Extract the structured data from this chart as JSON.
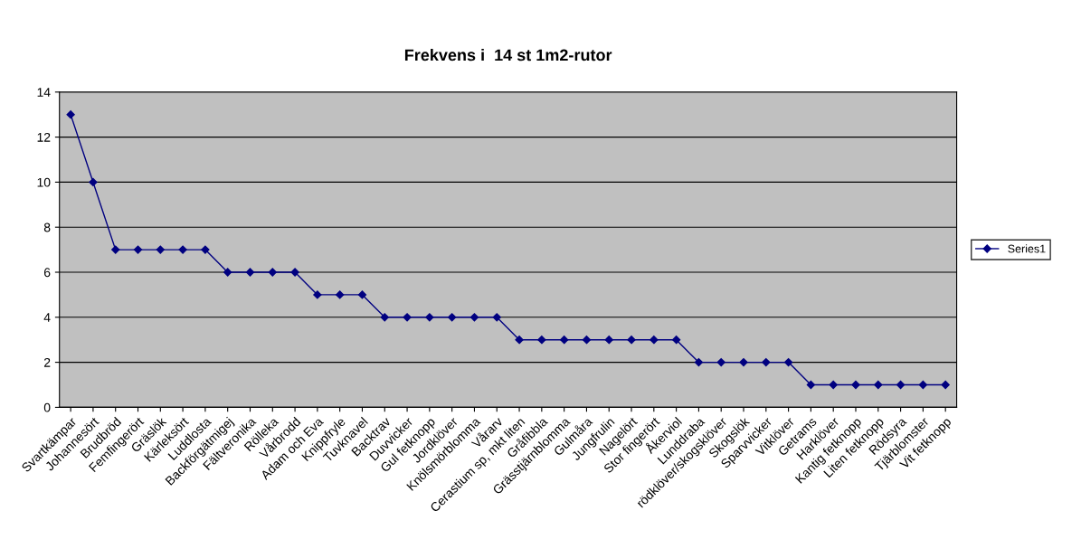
{
  "chart_data": {
    "type": "line",
    "title": "Frekvens i  14 st 1m2-rutor",
    "categories": [
      "Svartkämpar",
      "Johannesört",
      "Brudbröd",
      "Femfingerört",
      "Gräslök",
      "Kärleksört",
      "Luddlosta",
      "Backförgätmigej",
      "Fältveronika",
      "Rölleka",
      "Vårbrodd",
      "Adam och Eva",
      "Knippfryle",
      "Tuvknavel",
      "Backtrav",
      "Duvvicker",
      "Gul fetknopp",
      "Jordklöver",
      "Knölsmörblomma",
      "Vårarv",
      "Cerastium sp, mkt liten",
      "Gråfibbla",
      "Grässtjärnblomma",
      "Gulmåra",
      "Jungfrulin",
      "Nagelört",
      "Stor fingerört",
      "Åkerviol",
      "Lunddraba",
      "rödklöver/skogsklöver",
      "Skogslök",
      "Sparvvicker",
      "Vitklöver",
      "Getrams",
      "Harklöver",
      "Kantig fetknopp",
      "Liten fetknopp",
      "Rödsyra",
      "Tjärblomster",
      "Vit fetknopp"
    ],
    "series": [
      {
        "name": "Series1",
        "color": "#000080",
        "values": [
          13,
          10,
          7,
          7,
          7,
          7,
          7,
          6,
          6,
          6,
          6,
          5,
          5,
          5,
          4,
          4,
          4,
          4,
          4,
          4,
          3,
          3,
          3,
          3,
          3,
          3,
          3,
          3,
          2,
          2,
          2,
          2,
          2,
          1,
          1,
          1,
          1,
          1,
          1,
          1
        ]
      }
    ],
    "ylim": [
      0,
      14
    ],
    "yticks": [
      0,
      2,
      4,
      6,
      8,
      10,
      12,
      14
    ],
    "grid": "y",
    "legend": "right",
    "marker": "diamond",
    "line_style": "solid"
  }
}
